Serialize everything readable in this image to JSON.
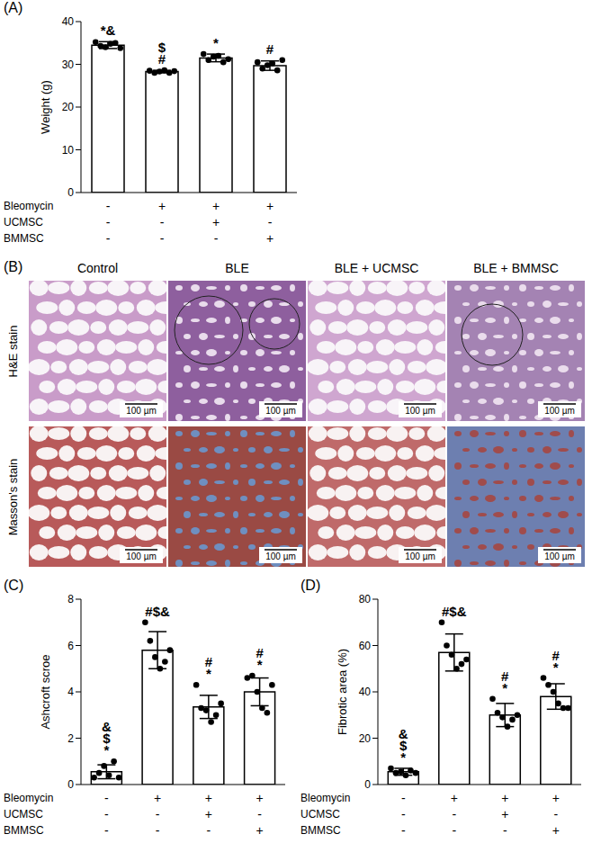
{
  "chart_data": [
    {
      "panel": "(A)",
      "type": "bar",
      "y_label": "Weight (g)",
      "conditions": [
        {
          "label": "Bleomycin",
          "values": [
            "-",
            "+",
            "+",
            "+"
          ]
        },
        {
          "label": "UCMSC",
          "values": [
            "-",
            "-",
            "+",
            "-"
          ]
        },
        {
          "label": "BMMSC",
          "values": [
            "-",
            "-",
            "-",
            "+"
          ]
        }
      ],
      "values": [
        34.5,
        28.3,
        31.5,
        29.7
      ],
      "errors": [
        0.8,
        0.3,
        0.9,
        1.1
      ],
      "points": [
        [
          35.2,
          34.3,
          34.0,
          34.8,
          35.0,
          33.8
        ],
        [
          28.5,
          28.0,
          28.3,
          28.6,
          28.0,
          28.4
        ],
        [
          32.4,
          31.0,
          31.8,
          32.0,
          30.5,
          31.2
        ],
        [
          30.5,
          29.0,
          29.8,
          30.2,
          28.6,
          31.0
        ]
      ],
      "significance": [
        [
          "*&"
        ],
        [
          "$",
          "#"
        ],
        [
          "*"
        ],
        [
          "#"
        ]
      ],
      "color": "#ffffff",
      "marker": "circle",
      "ylim": [
        0,
        40
      ],
      "yticks": [
        0,
        10,
        20,
        30,
        40
      ],
      "grid": false
    },
    {
      "panel": "(C)",
      "type": "bar",
      "y_label": "Ashcroft scroe",
      "conditions": [
        {
          "label": "Bleomycin",
          "values": [
            "-",
            "+",
            "+",
            "+"
          ]
        },
        {
          "label": "UCMSC",
          "values": [
            "-",
            "-",
            "+",
            "-"
          ]
        },
        {
          "label": "BMMSC",
          "values": [
            "-",
            "-",
            "-",
            "+"
          ]
        }
      ],
      "values": [
        0.55,
        5.8,
        3.35,
        4.0
      ],
      "errors": [
        0.3,
        0.8,
        0.5,
        0.6
      ],
      "points": [
        [
          0.3,
          0.5,
          0.8,
          0.4,
          1.0,
          0.3
        ],
        [
          7.0,
          6.2,
          5.5,
          5.0,
          5.3,
          5.8
        ],
        [
          4.3,
          3.3,
          3.2,
          2.7,
          3.0,
          3.5
        ],
        [
          4.6,
          4.7,
          4.0,
          3.3,
          3.1,
          4.3
        ]
      ],
      "significance": [
        [
          "&",
          "$",
          "*"
        ],
        [
          "#$&"
        ],
        [
          "#",
          "*"
        ],
        [
          "#",
          "*"
        ]
      ],
      "color": "#ffffff",
      "marker": "circle",
      "ylim": [
        0,
        8
      ],
      "yticks": [
        0,
        2,
        4,
        6,
        8
      ],
      "grid": false
    },
    {
      "panel": "(D)",
      "type": "bar",
      "y_label": "Fibrotic area (%)",
      "conditions": [
        {
          "label": "Bleomycin",
          "values": [
            "-",
            "+",
            "+",
            "+"
          ]
        },
        {
          "label": "UCMSC",
          "values": [
            "-",
            "-",
            "+",
            "-"
          ]
        },
        {
          "label": "BMMSC",
          "values": [
            "-",
            "-",
            "-",
            "+"
          ]
        }
      ],
      "values": [
        5.5,
        57,
        30,
        38
      ],
      "errors": [
        1.5,
        8,
        5,
        5.5
      ],
      "points": [
        [
          7,
          5,
          5.5,
          4,
          6,
          5
        ],
        [
          70,
          60,
          56,
          50,
          52,
          54
        ],
        [
          37,
          31,
          29,
          25,
          28,
          30
        ],
        [
          46,
          43,
          40,
          35,
          33,
          33
        ]
      ],
      "significance": [
        [
          "&",
          "$",
          "*"
        ],
        [
          "#$&"
        ],
        [
          "#",
          "*"
        ],
        [
          "#",
          "*"
        ]
      ],
      "color": "#ffffff",
      "marker": "circle",
      "ylim": [
        0,
        80
      ],
      "yticks": [
        0,
        20,
        40,
        60,
        80
      ],
      "grid": false
    }
  ],
  "image_panel": {
    "panel": "(B)",
    "columns": [
      "Control",
      "BLE",
      "BLE + UCMSC",
      "BLE + BMMSC"
    ],
    "rows": [
      "H&E stain",
      "Masson's stain"
    ],
    "scale_bar": "100 µm"
  }
}
